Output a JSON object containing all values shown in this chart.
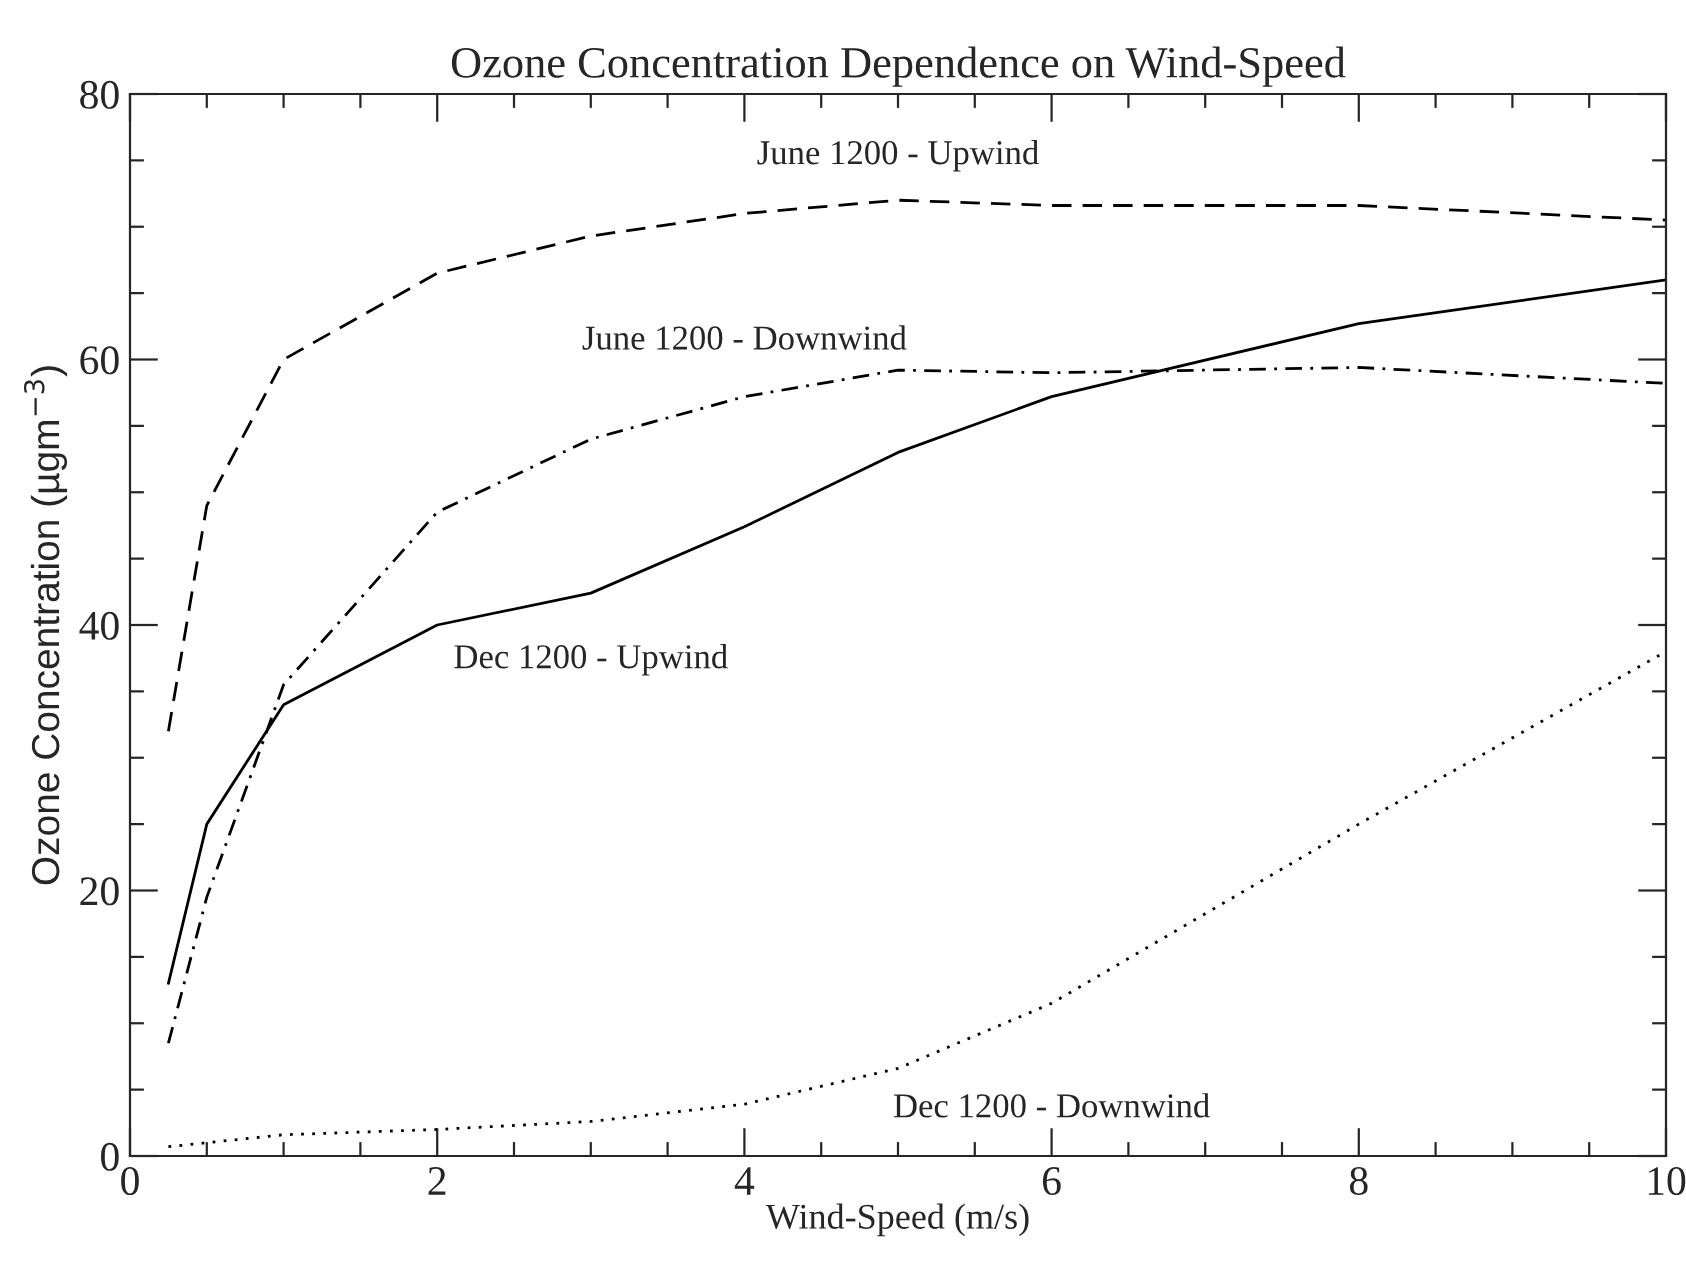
{
  "chart_data": {
    "type": "line",
    "title": "Ozone Concentration Dependence on Wind-Speed",
    "xlabel": "Wind-Speed (m/s)",
    "ylabel": "Ozone Concentration (µgm$^{−3}$)",
    "x": [
      0.25,
      0.5,
      1,
      2,
      3,
      4,
      5,
      6,
      8,
      10
    ],
    "series": [
      {
        "name": "June 1200 - Upwind",
        "color": "#000000",
        "line_style": "dashed",
        "values": [
          32,
          49,
          60,
          66.5,
          69.3,
          71,
          72,
          71.6,
          71.6,
          70.5
        ]
      },
      {
        "name": "June 1200 - Downwind",
        "color": "#000000",
        "line_style": "dashdot",
        "values": [
          8.5,
          19.5,
          35.5,
          48.5,
          54,
          57.2,
          59.2,
          59,
          59.4,
          58.2
        ]
      },
      {
        "name": "Dec 1200 - Upwind",
        "color": "#000000",
        "line_style": "solid",
        "values": [
          13,
          25,
          34,
          40,
          42.4,
          47.4,
          53,
          57.2,
          62.7,
          66
        ]
      },
      {
        "name": "Dec 1200 - Downwind",
        "color": "#000000",
        "line_style": "dotted",
        "values": [
          0.7,
          1,
          1.6,
          2,
          2.6,
          3.9,
          6.6,
          11.5,
          25,
          38
        ]
      }
    ],
    "xlim": [
      0,
      10
    ],
    "xticks": [
      0,
      2,
      4,
      6,
      8,
      10
    ],
    "ylim": [
      0,
      80
    ],
    "yticks": [
      0,
      20,
      40,
      60,
      80
    ],
    "grid": false,
    "legend": false,
    "marker": "none"
  }
}
